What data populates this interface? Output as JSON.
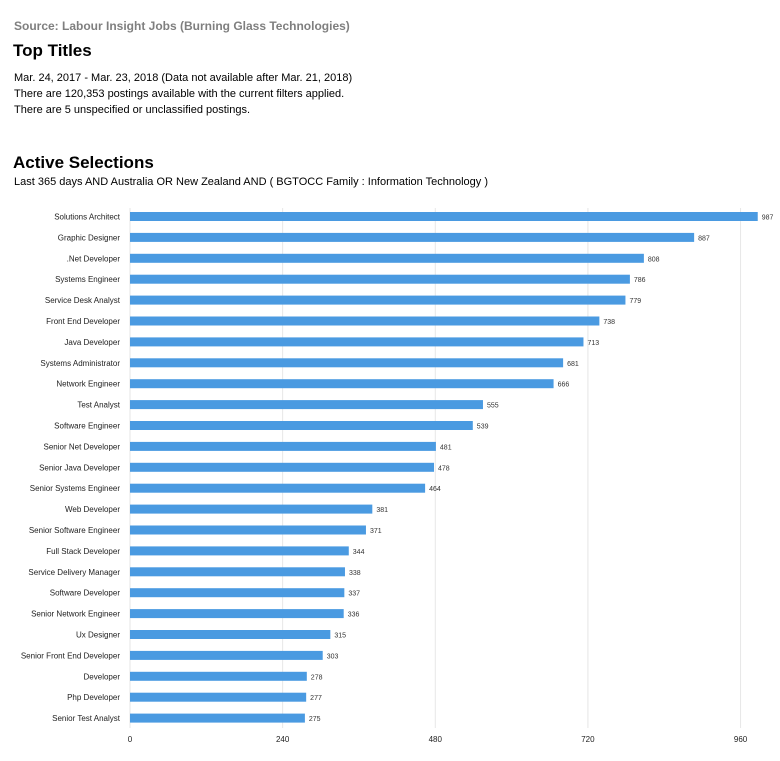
{
  "source": "Source: Labour Insight Jobs (Burning Glass Technologies)",
  "title": "Top Titles",
  "date_range": "Mar.  24, 2017  - Mar.  23, 2018  (Data not available after  Mar.  21, 2018)",
  "postings_line": "There are 120,353 postings available with the current filters applied.",
  "unspecified_line": "There are 5 unspecified or unclassified postings.",
  "active_title": "Active Selections",
  "active_filter": "Last 365 days AND Australia OR New Zealand AND ( BGTOCC Family : Information Technology )",
  "colors": {
    "bar": "#4a9ae1",
    "source_text": "#7f7f7f"
  },
  "chart_data": {
    "type": "bar",
    "orientation": "horizontal",
    "title": "",
    "xlabel": "",
    "ylabel": "",
    "xlim": [
      0,
      1000
    ],
    "ticks": [
      0,
      240,
      480,
      720,
      960
    ],
    "grid": true,
    "categories": [
      "Solutions Architect",
      "Graphic Designer",
      ".Net Developer",
      "Systems Engineer",
      "Service Desk Analyst",
      "Front End Developer",
      "Java Developer",
      "Systems Administrator",
      "Network Engineer",
      "Test Analyst",
      "Software Engineer",
      "Senior Net Developer",
      "Senior Java Developer",
      "Senior Systems Engineer",
      "Web Developer",
      "Senior Software Engineer",
      "Full Stack Developer",
      "Service Delivery Manager",
      "Software Developer",
      "Senior Network Engineer",
      "Ux Designer",
      "Senior Front End Developer",
      "Developer",
      "Php Developer",
      "Senior Test Analyst"
    ],
    "values": [
      987,
      887,
      808,
      786,
      779,
      738,
      713,
      681,
      666,
      555,
      539,
      481,
      478,
      464,
      381,
      371,
      344,
      338,
      337,
      336,
      315,
      303,
      278,
      277,
      275
    ]
  }
}
